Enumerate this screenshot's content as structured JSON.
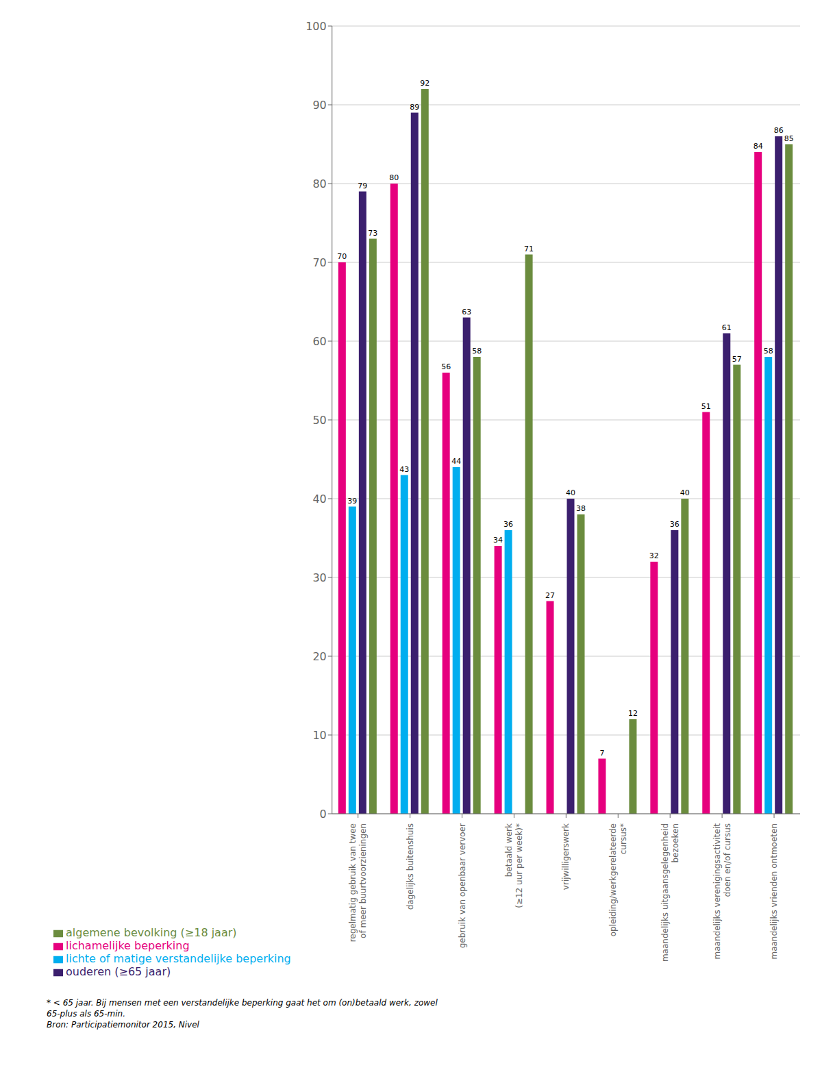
{
  "chart_data": {
    "type": "bar",
    "categories": [
      "regelmatig gebruik van twee\nof meer buurtvoorzieningen",
      "dagelijks buitenshuis",
      "gebruik van openbaar vervoer",
      "betaald werk\n(≥12 uur per week)*",
      "vrijwilligerswerk",
      "opleiding/werkgerelateerde\ncursus*",
      "maandelijks uitgaansgelegenheid\nbezoeken",
      "maandelijks verenigingsactiviteit\ndoen en/of cursus",
      "maandelijks vrienden ontmoeten"
    ],
    "series": [
      {
        "name": "lichamelijke beperking",
        "color": "#E6007E",
        "values": [
          70,
          80,
          56,
          34,
          27,
          7,
          32,
          51,
          84
        ]
      },
      {
        "name": "lichte of matige verstandelijke beperking",
        "color": "#00AEEF",
        "values": [
          39,
          43,
          44,
          36,
          null,
          null,
          null,
          null,
          58
        ]
      },
      {
        "name": "ouderen (≥65 jaar)",
        "color": "#3B1F6E",
        "values": [
          79,
          89,
          63,
          null,
          40,
          null,
          36,
          61,
          86
        ]
      },
      {
        "name": "algemene bevolking (≥18 jaar)",
        "color": "#6B8C3E",
        "values": [
          73,
          92,
          58,
          71,
          38,
          12,
          40,
          57,
          85
        ]
      }
    ],
    "ylim": [
      0,
      100
    ],
    "yticks": [
      0,
      10,
      20,
      30,
      40,
      50,
      60,
      70,
      80,
      90,
      100
    ],
    "grid": true,
    "data_labels": true,
    "legend": "bottom",
    "annotations": [
      "* < 65 jaar. Bij mensen met een verstandelijke beperking gaat het om (on)betaald werk, zowel",
      "65-plus als 65-min.",
      "Bron: Participatiemonitor 2015, Nivel"
    ]
  }
}
